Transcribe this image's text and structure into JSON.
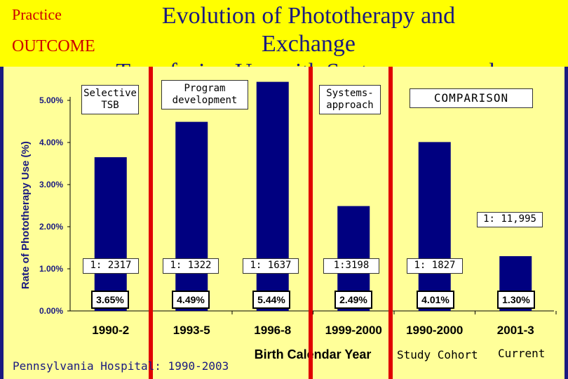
{
  "header": {
    "practice": "Practice",
    "outcome": "OUTCOME",
    "title": "Evolution of Phototherapy and Exchange\nTransfusion Use with Systems-approach"
  },
  "phases": {
    "selective": "Selective TSB",
    "program": "Program development",
    "systems": "Systems-approach",
    "comparison": "COMPARISON"
  },
  "ratios": [
    "1: 2317",
    "1: 1322",
    "1: 1637",
    "1:3198",
    "1: 1827",
    "1: 11,995"
  ],
  "footer": {
    "hospital": "Pennsylvania Hospital: 1990-2003",
    "study_cohort": "Study Cohort",
    "current": "Current"
  },
  "colors": {
    "bar": "#000080",
    "divider": "#e00000",
    "header_bg": "#ffff00",
    "panel_bg": "#ffff99"
  },
  "chart_data": {
    "type": "bar",
    "categories": [
      "1990-2",
      "1993-5",
      "1996-8",
      "1999-2000",
      "1990-2000",
      "2001-3"
    ],
    "values": [
      3.65,
      4.49,
      5.44,
      2.49,
      4.01,
      1.3
    ],
    "value_labels": [
      "3.65%",
      "4.49%",
      "5.44%",
      "2.49%",
      "4.01%",
      "1.30%"
    ],
    "ylabel": "Rate of Phototherapy Use (%)",
    "xlabel": "Birth Calendar Year",
    "ylim": [
      0,
      5
    ],
    "y_ticks": [
      0,
      1,
      2,
      3,
      4,
      5
    ],
    "y_tick_labels": [
      "0.00%",
      "1.00%",
      "2.00%",
      "3.00%",
      "4.00%",
      "5.00%"
    ],
    "grid": false,
    "legend": "none"
  }
}
